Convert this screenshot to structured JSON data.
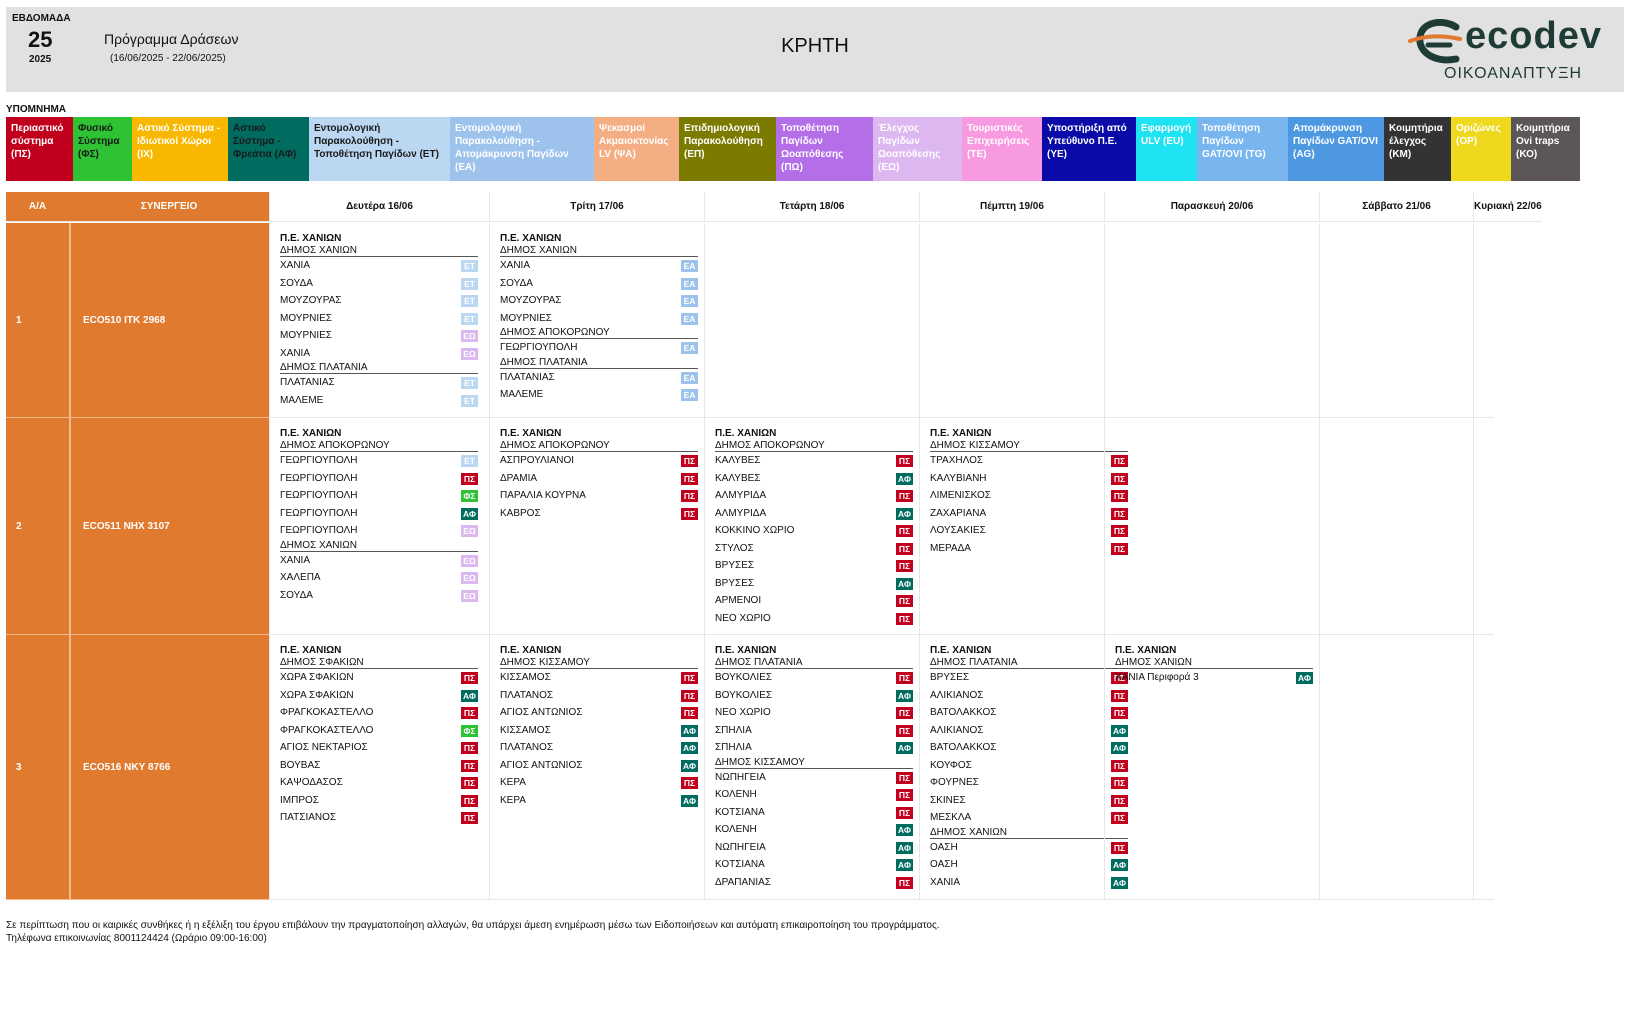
{
  "header": {
    "week_label": "ΕΒΔΟΜΑΔΑ",
    "week_number": "25",
    "year": "2025",
    "program_title": "Πρόγραμμα Δράσεων",
    "date_range": "(16/06/2025 - 22/06/2025)",
    "region": "ΚΡΗΤΗ",
    "logo_text": "ecodev",
    "logo_subtitle": "ΟΙΚΟΑΝΑΠΤΥΞΗ"
  },
  "legend": {
    "title": "ΥΠΟΜΝΗΜΑ",
    "items": [
      {
        "code": "ΠΣ",
        "label": "Περιαστικό σύστημα (ΠΣ)",
        "bg": "#c0001d",
        "fg": "#ffffff"
      },
      {
        "code": "ΦΣ",
        "label": "Φυσικό Σύστημα (ΦΣ)",
        "bg": "#2ec234",
        "fg": "#1a1a1a"
      },
      {
        "code": "ΙΧ",
        "label": "Αστικό Σύστημα - Ιδιωτικοί Χώροι (ΙΧ)",
        "bg": "#f9b800",
        "fg": "#ffffff"
      },
      {
        "code": "ΑΦ",
        "label": "Αστικό Σύστημα - Φρεάτια (ΑΦ)",
        "bg": "#006b5f",
        "fg": "#1a1a1a"
      },
      {
        "code": "ΕΤ",
        "label": "Εντομολογική Παρακολούθηση - Τοποθέτηση Παγίδων (ΕΤ)",
        "bg": "#bcd7f2",
        "fg": "#1a1a1a"
      },
      {
        "code": "ΕΑ",
        "label": "Εντομολογική Παρακολούθηση - Απομάκρυνση Παγίδων (ΕΑ)",
        "bg": "#9dc3ec",
        "fg": "#ffffff"
      },
      {
        "code": "ΨΑ",
        "label": "Ψεκασμοί Ακμαιοκτονίας LV (ΨΑ)",
        "bg": "#f4ae83",
        "fg": "#ffffff"
      },
      {
        "code": "ΕΠ",
        "label": "Επιδημιολογική Παρακολούθηση (ΕΠ)",
        "bg": "#7b7b00",
        "fg": "#ffffff"
      },
      {
        "code": "ΠΩ",
        "label": "Τοποθέτηση Παγίδων Ωοαπόθεσης (ΠΩ)",
        "bg": "#b36ee8",
        "fg": "#ffffff"
      },
      {
        "code": "ΕΩ",
        "label": "Έλεγχος Παγίδων Ωοαπόθεσης (ΕΩ)",
        "bg": "#dcb7f0",
        "fg": "#ffffff"
      },
      {
        "code": "ΤΕ",
        "label": "Τουριστικές Επιχειρήσεις (ΤΕ)",
        "bg": "#f79ae0",
        "fg": "#ffffff"
      },
      {
        "code": "ΥΕ",
        "label": "Υποστήριξη από Υπεύθυνο Π.Ε. (ΥΕ)",
        "bg": "#0a0aa8",
        "fg": "#ffffff"
      },
      {
        "code": "EU",
        "label": "Εφαρμογή ULV (EU)",
        "bg": "#1ee3f2",
        "fg": "#ffffff"
      },
      {
        "code": "TG",
        "label": "Τοποθέτηση Παγίδων GAT/OVI (TG)",
        "bg": "#79b6ef",
        "fg": "#ffffff"
      },
      {
        "code": "AG",
        "label": "Απομάκρυνση Παγίδων GAT/OVI (AG)",
        "bg": "#4e98e2",
        "fg": "#ffffff"
      },
      {
        "code": "ΚΜ",
        "label": "Κοιμητήρια έλεγχος (ΚΜ)",
        "bg": "#333333",
        "fg": "#ffffff"
      },
      {
        "code": "ΟΡ",
        "label": "Οριζώνες (ΟΡ)",
        "bg": "#efd91f",
        "fg": "#ffffff"
      },
      {
        "code": "ΚΟ",
        "label": "Κοιμητήρια Ovi traps (ΚΟ)",
        "bg": "#5d5656",
        "fg": "#ffffff"
      }
    ]
  },
  "table": {
    "col_aa": "Α/Α",
    "col_team": "ΣΥΝΕΡΓΕΙΟ",
    "days": [
      "Δευτέρα 16/06",
      "Τρίτη 17/06",
      "Τετάρτη 18/06",
      "Πέμπτη 19/06",
      "Παρασκευή 20/06",
      "Σάββατο 21/06",
      "Κυριακή 22/06"
    ],
    "rows": [
      {
        "aa": "1",
        "team": "ECO510  ΙΤΚ 2968",
        "days": [
          [
            {
              "t": "pe",
              "v": "Π.Ε. ΧΑΝΙΩΝ"
            },
            {
              "t": "dh",
              "v": "ΔΗΜΟΣ ΧΑΝΙΩΝ"
            },
            {
              "t": "it",
              "v": "ΧΑΝΙΑ",
              "c": "ΕΤ"
            },
            {
              "t": "it",
              "v": "ΣΟΥΔΑ",
              "c": "ΕΤ"
            },
            {
              "t": "it",
              "v": "ΜΟΥΖΟΥΡΑΣ",
              "c": "ΕΤ"
            },
            {
              "t": "it",
              "v": "ΜΟΥΡΝΙΕΣ",
              "c": "ΕΤ"
            },
            {
              "t": "it",
              "v": "ΜΟΥΡΝΙΕΣ",
              "c": "ΕΩ"
            },
            {
              "t": "it",
              "v": "ΧΑΝΙΑ",
              "c": "ΕΩ"
            },
            {
              "t": "dh",
              "v": "ΔΗΜΟΣ ΠΛΑΤΑΝΙΑ"
            },
            {
              "t": "it",
              "v": "ΠΛΑΤΑΝΙΑΣ",
              "c": "ΕΤ"
            },
            {
              "t": "it",
              "v": "ΜΑΛΕΜΕ",
              "c": "ΕΤ"
            }
          ],
          [
            {
              "t": "pe",
              "v": "Π.Ε. ΧΑΝΙΩΝ"
            },
            {
              "t": "dh",
              "v": "ΔΗΜΟΣ ΧΑΝΙΩΝ"
            },
            {
              "t": "it",
              "v": "ΧΑΝΙΑ",
              "c": "ΕΑ"
            },
            {
              "t": "it",
              "v": "ΣΟΥΔΑ",
              "c": "ΕΑ"
            },
            {
              "t": "it",
              "v": "ΜΟΥΖΟΥΡΑΣ",
              "c": "ΕΑ"
            },
            {
              "t": "it",
              "v": "ΜΟΥΡΝΙΕΣ",
              "c": "ΕΑ"
            },
            {
              "t": "dh",
              "v": "ΔΗΜΟΣ ΑΠΟΚΟΡΩΝΟΥ"
            },
            {
              "t": "it",
              "v": "ΓΕΩΡΓΙΟΥΠΟΛΗ",
              "c": "ΕΑ"
            },
            {
              "t": "dh",
              "v": "ΔΗΜΟΣ ΠΛΑΤΑΝΙΑ"
            },
            {
              "t": "it",
              "v": "ΠΛΑΤΑΝΙΑΣ",
              "c": "ΕΑ"
            },
            {
              "t": "it",
              "v": "ΜΑΛΕΜΕ",
              "c": "ΕΑ"
            }
          ],
          [],
          [],
          [],
          [],
          []
        ]
      },
      {
        "aa": "2",
        "team": "ECO511  ΝΗΧ 3107",
        "days": [
          [
            {
              "t": "pe",
              "v": "Π.Ε. ΧΑΝΙΩΝ"
            },
            {
              "t": "dh",
              "v": "ΔΗΜΟΣ ΑΠΟΚΟΡΩΝΟΥ"
            },
            {
              "t": "it",
              "v": "ΓΕΩΡΓΙΟΥΠΟΛΗ",
              "c": "ΕΤ"
            },
            {
              "t": "it",
              "v": "ΓΕΩΡΓΙΟΥΠΟΛΗ",
              "c": "ΠΣ"
            },
            {
              "t": "it",
              "v": "ΓΕΩΡΓΙΟΥΠΟΛΗ",
              "c": "ΦΣ"
            },
            {
              "t": "it",
              "v": "ΓΕΩΡΓΙΟΥΠΟΛΗ",
              "c": "ΑΦ"
            },
            {
              "t": "it",
              "v": "ΓΕΩΡΓΙΟΥΠΟΛΗ",
              "c": "ΕΩ"
            },
            {
              "t": "dh",
              "v": "ΔΗΜΟΣ ΧΑΝΙΩΝ"
            },
            {
              "t": "it",
              "v": "ΧΑΝΙΑ",
              "c": "ΕΩ"
            },
            {
              "t": "it",
              "v": "ΧΑΛΕΠΑ",
              "c": "ΕΩ"
            },
            {
              "t": "it",
              "v": "ΣΟΥΔΑ",
              "c": "ΕΩ"
            }
          ],
          [
            {
              "t": "pe",
              "v": "Π.Ε. ΧΑΝΙΩΝ"
            },
            {
              "t": "dh",
              "v": "ΔΗΜΟΣ ΑΠΟΚΟΡΩΝΟΥ"
            },
            {
              "t": "it",
              "v": "ΑΣΠΡΟΥΛΙΑΝΟΙ",
              "c": "ΠΣ"
            },
            {
              "t": "it",
              "v": "ΔΡΑΜΙΑ",
              "c": "ΠΣ"
            },
            {
              "t": "it",
              "v": "ΠΑΡΑΛΙΑ ΚΟΥΡΝΑ",
              "c": "ΠΣ"
            },
            {
              "t": "it",
              "v": "ΚΑΒΡΟΣ",
              "c": "ΠΣ"
            }
          ],
          [
            {
              "t": "pe",
              "v": "Π.Ε. ΧΑΝΙΩΝ"
            },
            {
              "t": "dh",
              "v": "ΔΗΜΟΣ ΑΠΟΚΟΡΩΝΟΥ"
            },
            {
              "t": "it",
              "v": "ΚΑΛΥΒΕΣ",
              "c": "ΠΣ"
            },
            {
              "t": "it",
              "v": "ΚΑΛΥΒΕΣ",
              "c": "ΑΦ"
            },
            {
              "t": "it",
              "v": "ΑΛΜΥΡΙΔΑ",
              "c": "ΠΣ"
            },
            {
              "t": "it",
              "v": "ΑΛΜΥΡΙΔΑ",
              "c": "ΑΦ"
            },
            {
              "t": "it",
              "v": "ΚΟΚΚΙΝΟ ΧΩΡΙΟ",
              "c": "ΠΣ"
            },
            {
              "t": "it",
              "v": "ΣΤΥΛΟΣ",
              "c": "ΠΣ"
            },
            {
              "t": "it",
              "v": "ΒΡΥΣΕΣ",
              "c": "ΠΣ"
            },
            {
              "t": "it",
              "v": "ΒΡΥΣΕΣ",
              "c": "ΑΦ"
            },
            {
              "t": "it",
              "v": "ΑΡΜΕΝΟΙ",
              "c": "ΠΣ"
            },
            {
              "t": "it",
              "v": "ΝΕΟ ΧΩΡΙΟ",
              "c": "ΠΣ"
            }
          ],
          [
            {
              "t": "pe",
              "v": "Π.Ε. ΧΑΝΙΩΝ"
            },
            {
              "t": "dh",
              "v": "ΔΗΜΟΣ ΚΙΣΣΑΜΟΥ"
            },
            {
              "t": "it",
              "v": "ΤΡΑΧΗΛΟΣ",
              "c": "ΠΣ"
            },
            {
              "t": "it",
              "v": "ΚΑΛΥΒΙΑΝΗ",
              "c": "ΠΣ"
            },
            {
              "t": "it",
              "v": "ΛΙΜΕΝΙΣΚΟΣ",
              "c": "ΠΣ"
            },
            {
              "t": "it",
              "v": "ΖΑΧΑΡΙΑΝΑ",
              "c": "ΠΣ"
            },
            {
              "t": "it",
              "v": "ΛΟΥΣΑΚΙΕΣ",
              "c": "ΠΣ"
            },
            {
              "t": "it",
              "v": "ΜΕΡΑΔΑ",
              "c": "ΠΣ"
            }
          ],
          [],
          [],
          []
        ]
      },
      {
        "aa": "3",
        "team": "ECO516  ΝΚΥ 8766",
        "days": [
          [
            {
              "t": "pe",
              "v": "Π.Ε. ΧΑΝΙΩΝ"
            },
            {
              "t": "dh",
              "v": "ΔΗΜΟΣ ΣΦΑΚΙΩΝ"
            },
            {
              "t": "it",
              "v": "ΧΩΡΑ ΣΦΑΚΙΩΝ",
              "c": "ΠΣ"
            },
            {
              "t": "it",
              "v": "ΧΩΡΑ ΣΦΑΚΙΩΝ",
              "c": "ΑΦ"
            },
            {
              "t": "it",
              "v": "ΦΡΑΓΚΟΚΑΣΤΕΛΛΟ",
              "c": "ΠΣ"
            },
            {
              "t": "it",
              "v": "ΦΡΑΓΚΟΚΑΣΤΕΛΛΟ",
              "c": "ΦΣ"
            },
            {
              "t": "it",
              "v": "ΑΓΙΟΣ ΝΕΚΤΑΡΙΟΣ",
              "c": "ΠΣ"
            },
            {
              "t": "it",
              "v": "ΒΟΥΒΑΣ",
              "c": "ΠΣ"
            },
            {
              "t": "it",
              "v": "ΚΑΨΟΔΑΣΟΣ",
              "c": "ΠΣ"
            },
            {
              "t": "it",
              "v": "ΙΜΠΡΟΣ",
              "c": "ΠΣ"
            },
            {
              "t": "it",
              "v": "ΠΑΤΣΙΑΝΟΣ",
              "c": "ΠΣ"
            }
          ],
          [
            {
              "t": "pe",
              "v": "Π.Ε. ΧΑΝΙΩΝ"
            },
            {
              "t": "dh",
              "v": "ΔΗΜΟΣ ΚΙΣΣΑΜΟΥ"
            },
            {
              "t": "it",
              "v": "ΚΙΣΣΑΜΟΣ",
              "c": "ΠΣ"
            },
            {
              "t": "it",
              "v": "ΠΛΑΤΑΝΟΣ",
              "c": "ΠΣ"
            },
            {
              "t": "it",
              "v": "ΑΓΙΟΣ ΑΝΤΩΝΙΟΣ",
              "c": "ΠΣ"
            },
            {
              "t": "it",
              "v": "ΚΙΣΣΑΜΟΣ",
              "c": "ΑΦ"
            },
            {
              "t": "it",
              "v": "ΠΛΑΤΑΝΟΣ",
              "c": "ΑΦ"
            },
            {
              "t": "it",
              "v": "ΑΓΙΟΣ ΑΝΤΩΝΙΟΣ",
              "c": "ΑΦ"
            },
            {
              "t": "it",
              "v": "ΚΕΡΑ",
              "c": "ΠΣ"
            },
            {
              "t": "it",
              "v": "ΚΕΡΑ",
              "c": "ΑΦ"
            }
          ],
          [
            {
              "t": "pe",
              "v": "Π.Ε. ΧΑΝΙΩΝ"
            },
            {
              "t": "dh",
              "v": "ΔΗΜΟΣ ΠΛΑΤΑΝΙΑ"
            },
            {
              "t": "it",
              "v": "ΒΟΥΚΟΛΙΕΣ",
              "c": "ΠΣ"
            },
            {
              "t": "it",
              "v": "ΒΟΥΚΟΛΙΕΣ",
              "c": "ΑΦ"
            },
            {
              "t": "it",
              "v": "ΝΕΟ ΧΩΡΙΟ",
              "c": "ΠΣ"
            },
            {
              "t": "it",
              "v": "ΣΠΗΛΙΑ",
              "c": "ΠΣ"
            },
            {
              "t": "it",
              "v": "ΣΠΗΛΙΑ",
              "c": "ΑΦ"
            },
            {
              "t": "dh",
              "v": "ΔΗΜΟΣ ΚΙΣΣΑΜΟΥ"
            },
            {
              "t": "it",
              "v": "ΝΩΠΗΓΕΙΑ",
              "c": "ΠΣ"
            },
            {
              "t": "it",
              "v": "ΚΟΛΕΝΗ",
              "c": "ΠΣ"
            },
            {
              "t": "it",
              "v": "ΚΟΤΣΙΑΝΑ",
              "c": "ΠΣ"
            },
            {
              "t": "it",
              "v": "ΚΟΛΕΝΗ",
              "c": "ΑΦ"
            },
            {
              "t": "it",
              "v": "ΝΩΠΗΓΕΙΑ",
              "c": "ΑΦ"
            },
            {
              "t": "it",
              "v": "ΚΟΤΣΙΑΝΑ",
              "c": "ΑΦ"
            },
            {
              "t": "it",
              "v": "ΔΡΑΠΑΝΙΑΣ",
              "c": "ΠΣ"
            }
          ],
          [
            {
              "t": "pe",
              "v": "Π.Ε. ΧΑΝΙΩΝ"
            },
            {
              "t": "dh",
              "v": "ΔΗΜΟΣ ΠΛΑΤΑΝΙΑ"
            },
            {
              "t": "it",
              "v": "ΒΡΥΣΕΣ",
              "c": "ΠΣ"
            },
            {
              "t": "it",
              "v": "ΑΛΙΚΙΑΝΟΣ",
              "c": "ΠΣ"
            },
            {
              "t": "it",
              "v": "ΒΑΤΟΛΑΚΚΟΣ",
              "c": "ΠΣ"
            },
            {
              "t": "it",
              "v": "ΑΛΙΚΙΑΝΟΣ",
              "c": "ΑΦ"
            },
            {
              "t": "it",
              "v": "ΒΑΤΟΛΑΚΚΟΣ",
              "c": "ΑΦ"
            },
            {
              "t": "it",
              "v": "ΚΟΥΦΟΣ",
              "c": "ΠΣ"
            },
            {
              "t": "it",
              "v": "ΦΟΥΡΝΕΣ",
              "c": "ΠΣ"
            },
            {
              "t": "it",
              "v": "ΣΚΙΝΕΣ",
              "c": "ΠΣ"
            },
            {
              "t": "it",
              "v": "ΜΕΣΚΛΑ",
              "c": "ΠΣ"
            },
            {
              "t": "dh",
              "v": "ΔΗΜΟΣ ΧΑΝΙΩΝ"
            },
            {
              "t": "it",
              "v": "ΟΑΣΗ",
              "c": "ΠΣ"
            },
            {
              "t": "it",
              "v": "ΟΑΣΗ",
              "c": "ΑΦ"
            },
            {
              "t": "it",
              "v": "ΧΑΝΙΑ",
              "c": "ΑΦ"
            }
          ],
          [
            {
              "t": "pe",
              "v": "Π.Ε. ΧΑΝΙΩΝ"
            },
            {
              "t": "dh",
              "v": "ΔΗΜΟΣ ΧΑΝΙΩΝ"
            },
            {
              "t": "it",
              "v": "ΧΑΝΙΑ Περιφορά 3",
              "c": "ΑΦ"
            }
          ],
          [],
          []
        ]
      }
    ]
  },
  "footer": {
    "note": "Σε περίπτωση που οι καιρικές συνθήκες ή η εξέλιξη του έργου επιβάλουν την πραγματοποίηση αλλαγών, θα υπάρχει άμεση ενημέρωση μέσω των Ειδοποιήσεων και αυτόματη επικαιροποίηση του προγράμματος.",
    "contact": "Τηλέφωνα επικοινωνίας 8001124424 (Ωράριο 09:00-16:00)"
  }
}
